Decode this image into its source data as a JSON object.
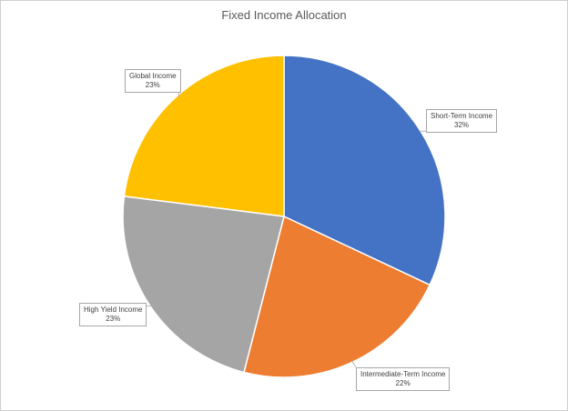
{
  "chart_data": {
    "type": "pie",
    "title": "Fixed Income Allocation",
    "slices": [
      {
        "label": "Short-Term Income",
        "value": 32,
        "value_label": "32%",
        "color": "#4472C4"
      },
      {
        "label": "Intermediate-Term Income",
        "value": 22,
        "value_label": "22%",
        "color": "#ED7D31"
      },
      {
        "label": "High Yield Income",
        "value": 23,
        "value_label": "23%",
        "color": "#A5A5A5"
      },
      {
        "label": "Global Income",
        "value": 23,
        "value_label": "23%",
        "color": "#FFC000"
      }
    ],
    "start_angle_deg": 0,
    "direction": "clockwise",
    "legend": "none",
    "data_labels": "callout-boxes"
  }
}
